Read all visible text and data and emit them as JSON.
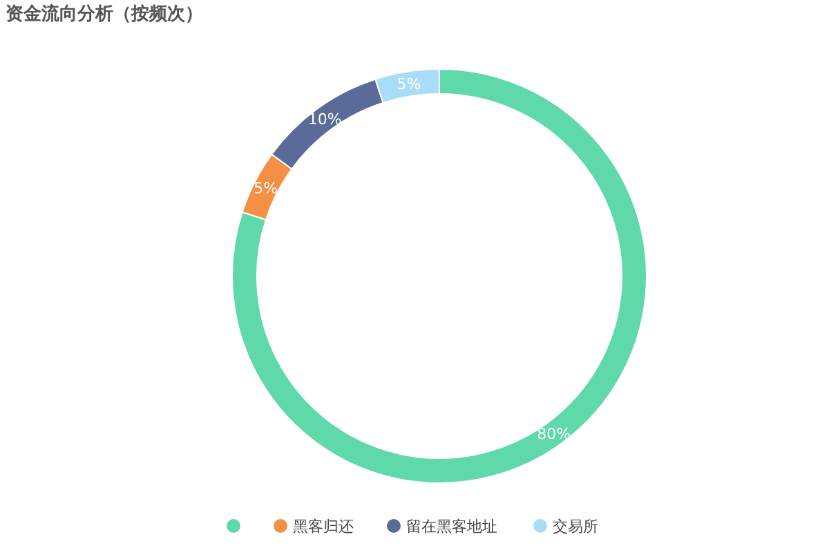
{
  "chart_data": {
    "type": "donut",
    "title": "资金流向分析（按频次）",
    "categories": [
      null,
      "黑客归还",
      "留在黑客地址",
      "交易所"
    ],
    "values": [
      80,
      5,
      10,
      5
    ],
    "colors": [
      "#5fd9aa",
      "#f39043",
      "#5a6b99",
      "#a9dcf6"
    ],
    "value_labels": [
      "80%",
      "5%",
      "10%",
      "5%"
    ],
    "legend": "bottom"
  }
}
